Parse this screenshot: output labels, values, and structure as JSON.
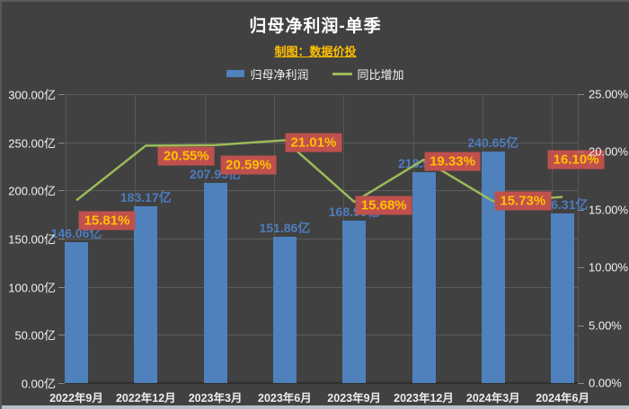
{
  "header": {
    "title": "归母净利润-单季",
    "subtitle": "制图：数据价投"
  },
  "legend": [
    {
      "label": "归母净利润",
      "type": "bar",
      "color": "#4f81bd"
    },
    {
      "label": "同比增加",
      "type": "line",
      "color": "#9bbb59"
    }
  ],
  "chart_data": {
    "type": "bar",
    "combo": "bar+line",
    "title": "归母净利润-单季",
    "subtitle": "制图：数据价投",
    "categories": [
      "2022年9月",
      "2022年12月",
      "2023年3月",
      "2023年6月",
      "2023年9月",
      "2023年12月",
      "2024年3月",
      "2024年6月"
    ],
    "series": [
      {
        "name": "归母净利润",
        "type": "bar",
        "axis": "left",
        "unit": "亿",
        "color": "#4f81bd",
        "values": [
          146.06,
          183.17,
          207.95,
          151.86,
          168.96,
          218.58,
          240.65,
          176.31
        ],
        "labels": [
          "146.06亿",
          "183.17亿",
          "207.95亿",
          "151.86亿",
          "168.96亿",
          "218.58亿",
          "240.65亿",
          "176.31亿"
        ]
      },
      {
        "name": "同比增加",
        "type": "line",
        "axis": "right",
        "unit": "%",
        "color": "#9bbb59",
        "values": [
          15.81,
          20.55,
          20.59,
          21.01,
          15.68,
          19.33,
          15.73,
          16.1
        ],
        "labels": [
          "15.81%",
          "20.55%",
          "20.59%",
          "21.01%",
          "15.68%",
          "19.33%",
          "15.73%",
          "16.10%"
        ]
      }
    ],
    "left_axis": {
      "min": 0,
      "max": 300,
      "ticks": [
        "300.00亿",
        "250.00亿",
        "200.00亿",
        "150.00亿",
        "100.00亿",
        "50.00亿",
        "0.00亿"
      ]
    },
    "right_axis": {
      "min": 0,
      "max": 25,
      "ticks": [
        "25.00%",
        "20.00%",
        "15.00%",
        "10.00%",
        "5.00%",
        "0.00%"
      ]
    },
    "grid": true,
    "legend_position": "top"
  },
  "colors": {
    "background": "#414141",
    "bar": "#4f81bd",
    "line": "#9bbb59",
    "bar_label_text": "#4d7cc0",
    "pct_label_bg": "#c0504d",
    "pct_label_text": "#ffc000",
    "axis_text": "#f2f2f2",
    "title_text": "#ffffff",
    "subtitle_text": "#ffc000",
    "gridline": "#5c5c5c",
    "bottom_strip": "#b7bfca"
  }
}
